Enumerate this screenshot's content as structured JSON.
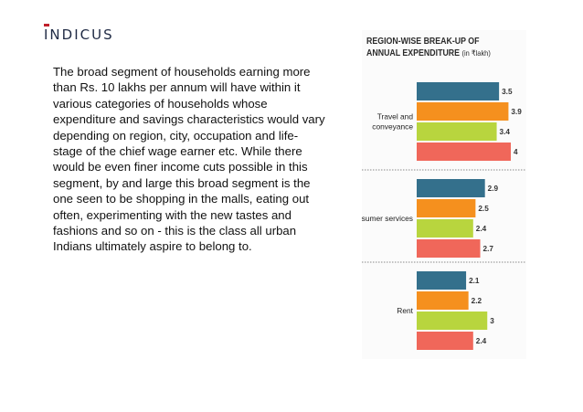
{
  "brand": {
    "name": "INDICUS"
  },
  "text": {
    "paragraph": "The broad segment of households earning more than Rs. 10 lakhs per annum will have within it various categories of households whose expenditure and savings characteristics would vary depending on region, city, occupation and life-stage of the chief wage earner etc. While there would be even finer income cuts possible in this segment, by and large this broad segment is the one seen to be shopping in the malls, eating out often, experimenting with the new tastes and fashions and so on - this is the class all urban Indians ultimately aspire to belong to."
  },
  "chart_data": {
    "type": "bar",
    "orientation": "horizontal",
    "title_line1": "REGION-WISE BREAK-UP OF",
    "title_line2": "ANNUAL EXPENDITURE",
    "unit": "(in ₹lakh)",
    "categories": [
      "Travel and conveyance",
      "Consumer services",
      "Rent"
    ],
    "category_label_lines": [
      [
        "Travel and",
        "conveyance"
      ],
      [
        "Consumer services"
      ],
      [
        "Rent"
      ]
    ],
    "series_colors": [
      "#34708c",
      "#f5901e",
      "#b8d53e",
      "#f0675a"
    ],
    "groups": [
      {
        "values": [
          3.5,
          3.9,
          3.4,
          4
        ],
        "labels": [
          "3.5",
          "3.9",
          "3.4",
          "4"
        ]
      },
      {
        "values": [
          2.9,
          2.5,
          2.4,
          2.7
        ],
        "labels": [
          "2.9",
          "2.5",
          "2.4",
          "2.7"
        ]
      },
      {
        "values": [
          2.1,
          2.2,
          3,
          2.4
        ],
        "labels": [
          "2.1",
          "2.2",
          "3",
          "2.4"
        ]
      }
    ],
    "xlim": [
      0,
      4
    ],
    "legend": "none",
    "grid": false,
    "separators": "dotted"
  }
}
